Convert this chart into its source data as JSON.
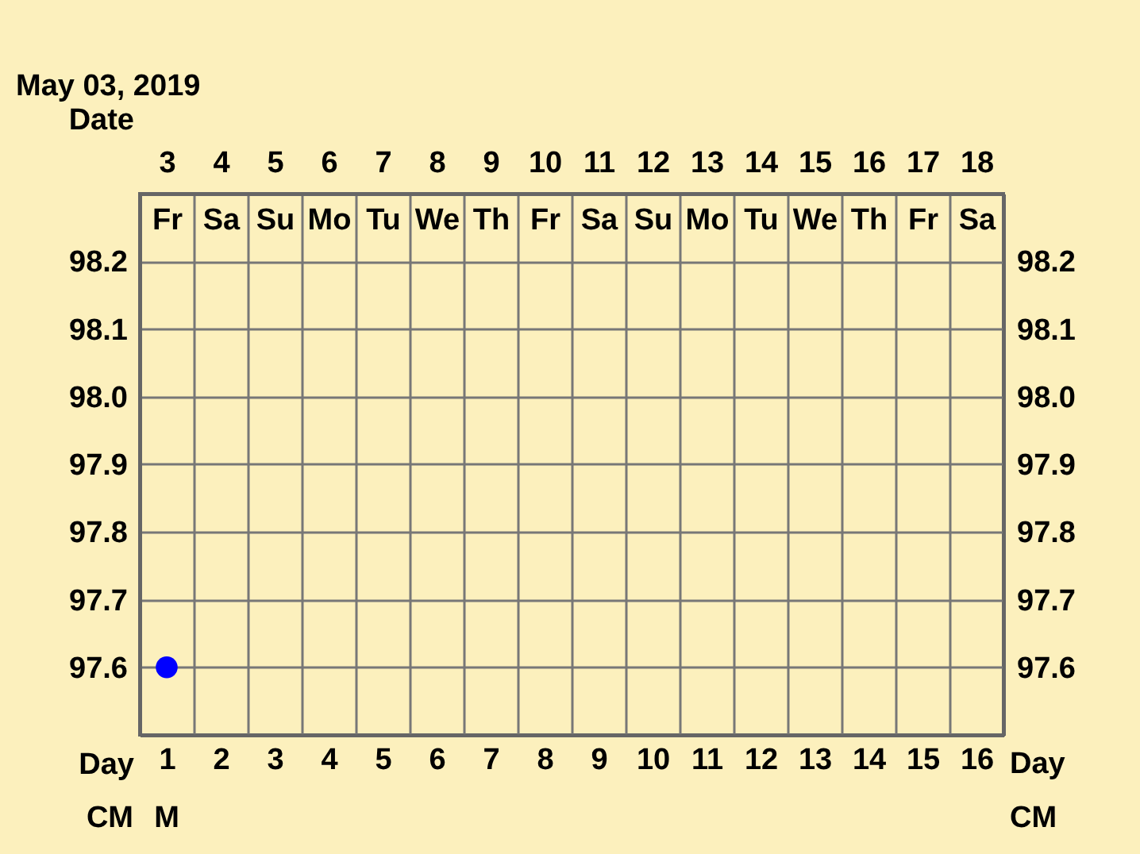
{
  "chart_data": {
    "type": "scatter",
    "title": "May 03, 2019",
    "xlabel": "Day",
    "x2label": "Date",
    "x": [
      1
    ],
    "values": [
      97.6
    ],
    "color": "#0000ff",
    "marker": "circle",
    "xlim": [
      0.5,
      16.5
    ],
    "xticks": [
      1,
      2,
      3,
      4,
      5,
      6,
      7,
      8,
      9,
      10,
      11,
      12,
      13,
      14,
      15,
      16
    ],
    "x2lim": [
      2.5,
      18.5
    ],
    "x2ticks": [
      {
        "value": 3,
        "label": "3 Fr"
      },
      {
        "value": 4,
        "label": "4 Sa"
      },
      {
        "value": 5,
        "label": "5 Su"
      },
      {
        "value": 6,
        "label": "6 Mo"
      },
      {
        "value": 7,
        "label": "7 Tu"
      },
      {
        "value": 8,
        "label": "8 We"
      },
      {
        "value": 9,
        "label": "9 Th"
      },
      {
        "value": 10,
        "label": "10 Fr"
      },
      {
        "value": 11,
        "label": "11 Sa"
      },
      {
        "value": 12,
        "label": "12 Su"
      },
      {
        "value": 13,
        "label": "13 Mo"
      },
      {
        "value": 14,
        "label": "14 Tu"
      },
      {
        "value": 15,
        "label": "15 We"
      },
      {
        "value": 16,
        "label": "16 Th"
      },
      {
        "value": 17,
        "label": "17 Fr"
      },
      {
        "value": 18,
        "label": "18 Sa"
      }
    ],
    "ylim": [
      97.5,
      98.3
    ],
    "yticks": [
      97.6,
      97.7,
      97.8,
      97.9,
      {
        "value": 98.0,
        "label": "98.0"
      },
      98.1,
      98.2
    ],
    "y2lim": [
      97.5,
      98.3
    ],
    "y2ticks": [
      97.6,
      97.7,
      97.8,
      97.9,
      {
        "value": 98.0,
        "label": "98.0"
      },
      98.1,
      98.2
    ],
    "grid": true,
    "annotations": [
      "CM",
      "M"
    ]
  }
}
